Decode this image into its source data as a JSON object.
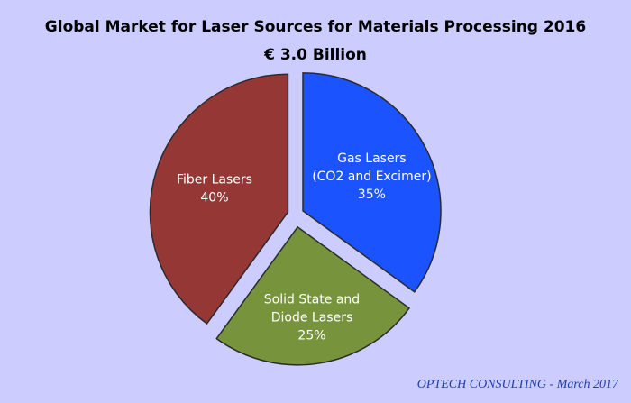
{
  "chart_data": {
    "type": "pie",
    "title": "Global Market for Laser Sources for Materials Processing 2016",
    "subtitle": "€ 3.0 Billion",
    "slices": [
      {
        "label_lines": [
          "Gas Lasers",
          "(CO2 and Excimer)"
        ],
        "percent_label": "35%",
        "value": 35,
        "color": "#1a53ff",
        "text_color": "#ffffff"
      },
      {
        "label_lines": [
          "Solid State and",
          "Diode Lasers"
        ],
        "percent_label": "25%",
        "value": 25,
        "color": "#77933c",
        "text_color": "#ffffff"
      },
      {
        "label_lines": [
          "Fiber Lasers"
        ],
        "percent_label": "40%",
        "value": 40,
        "color": "#953735",
        "text_color": "#ffffff"
      }
    ],
    "source_note": "OPTECH CONSULTING - March 2017"
  },
  "colors": {
    "background": "#ccccff",
    "slice_border": "#2b2b2b",
    "source_note": "#1f3fa8"
  }
}
